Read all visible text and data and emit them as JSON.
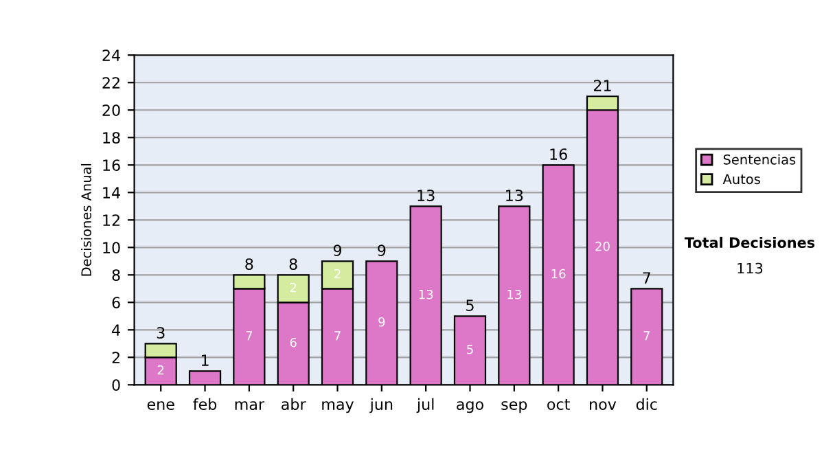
{
  "chart_data": {
    "type": "bar",
    "stacked": true,
    "ylabel": "Decisiones Anual",
    "categories": [
      "ene",
      "feb",
      "mar",
      "abr",
      "may",
      "jun",
      "jul",
      "ago",
      "sep",
      "oct",
      "nov",
      "dic"
    ],
    "series": [
      {
        "name": "Sentencias",
        "color": "#dd77c8",
        "values": [
          2,
          1,
          7,
          6,
          7,
          9,
          13,
          5,
          13,
          16,
          20,
          7
        ],
        "value_labels": [
          "2",
          null,
          "7",
          "6",
          "7",
          "9",
          "13",
          "5",
          "13",
          "16",
          "20",
          "7"
        ]
      },
      {
        "name": "Autos",
        "color": "#d4eba0",
        "values": [
          1,
          null,
          1,
          2,
          2,
          null,
          null,
          null,
          null,
          null,
          1,
          null
        ],
        "value_labels": [
          null,
          null,
          null,
          "2",
          "2",
          null,
          null,
          null,
          null,
          null,
          null,
          null
        ]
      }
    ],
    "totals": [
      "3",
      "1",
      "8",
      "8",
      "9",
      "9",
      "13",
      "5",
      "13",
      "16",
      "21",
      "7"
    ],
    "ylim": [
      0,
      24
    ],
    "yticks": [
      0,
      2,
      4,
      6,
      8,
      10,
      12,
      14,
      16,
      18,
      20,
      22,
      24
    ],
    "grid": "y",
    "legend": "right",
    "annotations": [
      "Total Decisiones",
      "113"
    ]
  }
}
